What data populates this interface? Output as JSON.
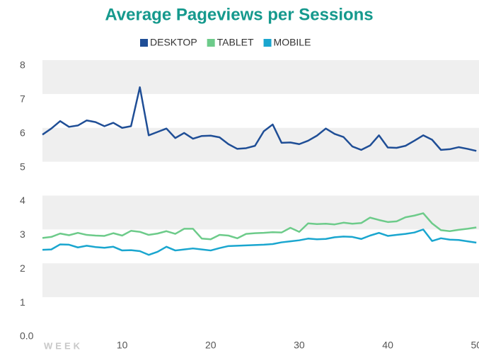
{
  "chart_data": {
    "type": "line",
    "title": "Average Pageviews per Sessions",
    "x_label": "WEEK",
    "x": [
      1,
      2,
      3,
      4,
      5,
      6,
      7,
      8,
      9,
      10,
      11,
      12,
      13,
      14,
      15,
      16,
      17,
      18,
      19,
      20,
      21,
      22,
      23,
      24,
      25,
      26,
      27,
      28,
      29,
      30,
      31,
      32,
      33,
      34,
      35,
      36,
      37,
      38,
      39,
      40,
      41,
      42,
      43,
      44,
      45,
      46,
      47,
      48,
      49,
      50
    ],
    "series": [
      {
        "name": "DESKTOP",
        "color": "#1f4e96",
        "values": [
          5.8,
          5.98,
          6.2,
          6.03,
          6.07,
          6.22,
          6.17,
          6.05,
          6.15,
          6.0,
          6.05,
          7.2,
          5.78,
          5.88,
          5.98,
          5.7,
          5.85,
          5.68,
          5.76,
          5.77,
          5.72,
          5.52,
          5.38,
          5.4,
          5.47,
          5.9,
          6.1,
          5.56,
          5.57,
          5.52,
          5.62,
          5.77,
          5.98,
          5.82,
          5.73,
          5.45,
          5.35,
          5.48,
          5.78,
          5.42,
          5.41,
          5.47,
          5.62,
          5.78,
          5.65,
          5.35,
          5.37,
          5.43,
          5.38,
          5.32
        ]
      },
      {
        "name": "TABLET",
        "color": "#6dcb8a",
        "values": [
          2.75,
          2.78,
          2.88,
          2.83,
          2.9,
          2.84,
          2.82,
          2.81,
          2.89,
          2.82,
          2.96,
          2.93,
          2.84,
          2.88,
          2.95,
          2.87,
          3.02,
          3.02,
          2.73,
          2.71,
          2.84,
          2.82,
          2.74,
          2.87,
          2.89,
          2.9,
          2.92,
          2.91,
          3.05,
          2.93,
          3.18,
          3.16,
          3.17,
          3.15,
          3.2,
          3.17,
          3.19,
          3.35,
          3.28,
          3.22,
          3.24,
          3.36,
          3.41,
          3.48,
          3.18,
          2.98,
          2.95,
          2.99,
          3.02,
          3.06
        ]
      },
      {
        "name": "MOBILE",
        "color": "#1aa6cf",
        "values": [
          2.4,
          2.41,
          2.56,
          2.55,
          2.47,
          2.52,
          2.48,
          2.46,
          2.49,
          2.38,
          2.39,
          2.36,
          2.25,
          2.34,
          2.49,
          2.38,
          2.41,
          2.44,
          2.41,
          2.38,
          2.45,
          2.51,
          2.52,
          2.53,
          2.54,
          2.55,
          2.57,
          2.62,
          2.65,
          2.68,
          2.73,
          2.71,
          2.72,
          2.77,
          2.79,
          2.78,
          2.72,
          2.82,
          2.9,
          2.81,
          2.84,
          2.87,
          2.91,
          3.0,
          2.66,
          2.74,
          2.7,
          2.69,
          2.65,
          2.61
        ]
      }
    ],
    "xlim": [
      1,
      50.3
    ],
    "xticks": [
      10,
      20,
      30,
      40,
      50
    ],
    "ylim": [
      0,
      8
    ],
    "yticks": [
      {
        "value": 0,
        "label": "0.0"
      },
      1,
      2,
      3,
      4,
      5,
      6,
      7,
      8
    ],
    "bands": true,
    "legend": "top"
  }
}
